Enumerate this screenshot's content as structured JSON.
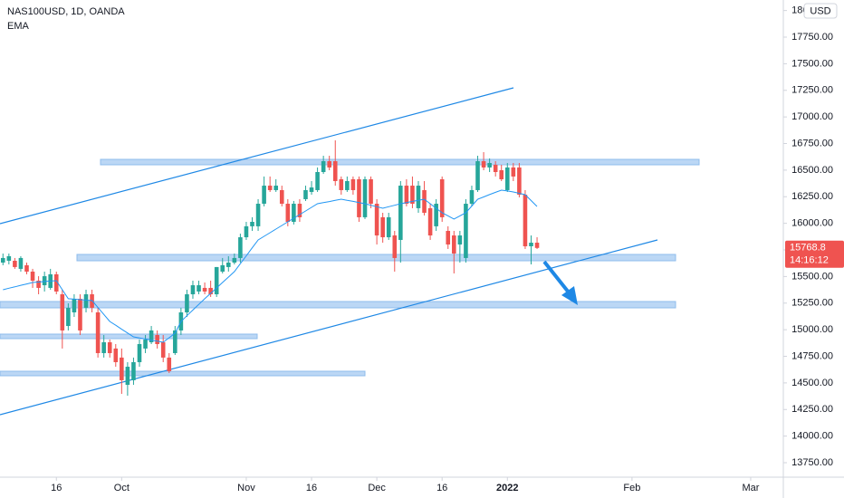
{
  "chart_data": {
    "type": "candlestick",
    "title": "NAS100USD, 1D, OANDA",
    "currency": "USD",
    "up_color": "#26a69a",
    "down_color": "#ef5350",
    "ohlc": [
      [
        15631,
        15716,
        15606,
        15674
      ],
      [
        15648,
        15716,
        15614,
        15691
      ],
      [
        15648,
        15674,
        15572,
        15589
      ],
      [
        15572,
        15691,
        15546,
        15674
      ],
      [
        15606,
        15631,
        15521,
        15546
      ],
      [
        15546,
        15572,
        15393,
        15461
      ],
      [
        15461,
        15503,
        15333,
        15393
      ],
      [
        15418,
        15546,
        15359,
        15503
      ],
      [
        15393,
        15572,
        15376,
        15521
      ],
      [
        15521,
        15546,
        15333,
        15359
      ],
      [
        15333,
        15376,
        14823,
        14993
      ],
      [
        15035,
        15248,
        14993,
        15206
      ],
      [
        15163,
        15333,
        15120,
        15291
      ],
      [
        15291,
        15333,
        14950,
        14993
      ],
      [
        15206,
        15376,
        15163,
        15333
      ],
      [
        15333,
        15376,
        15163,
        15206
      ],
      [
        15163,
        15206,
        14738,
        14780
      ],
      [
        14780,
        14950,
        14738,
        14882
      ],
      [
        14882,
        14908,
        14738,
        14780
      ],
      [
        14823,
        14865,
        14652,
        14695
      ],
      [
        14738,
        14823,
        14397,
        14525
      ],
      [
        14482,
        14695,
        14380,
        14652
      ],
      [
        14525,
        14738,
        14482,
        14695
      ],
      [
        14695,
        14908,
        14652,
        14865
      ],
      [
        14823,
        14950,
        14780,
        14908
      ],
      [
        14882,
        15035,
        14865,
        14993
      ],
      [
        14950,
        14993,
        14823,
        14865
      ],
      [
        14882,
        14950,
        14695,
        14738
      ],
      [
        14738,
        14780,
        14593,
        14610
      ],
      [
        14780,
        15035,
        14763,
        14993
      ],
      [
        14993,
        15206,
        14950,
        15163
      ],
      [
        15163,
        15376,
        15120,
        15333
      ],
      [
        15333,
        15461,
        15291,
        15418
      ],
      [
        15359,
        15461,
        15333,
        15418
      ],
      [
        15393,
        15444,
        15333,
        15359
      ],
      [
        15393,
        15461,
        15308,
        15333
      ],
      [
        15333,
        15589,
        15308,
        15589
      ],
      [
        15546,
        15674,
        15529,
        15606
      ],
      [
        15589,
        15691,
        15546,
        15631
      ],
      [
        15631,
        15716,
        15614,
        15674
      ],
      [
        15674,
        15903,
        15631,
        15869
      ],
      [
        15869,
        16014,
        15844,
        15972
      ],
      [
        15972,
        16057,
        15929,
        16014
      ],
      [
        15972,
        16227,
        15929,
        16184
      ],
      [
        16184,
        16440,
        16159,
        16354
      ],
      [
        16354,
        16440,
        16295,
        16312
      ],
      [
        16312,
        16414,
        16295,
        16354
      ],
      [
        16312,
        16354,
        16159,
        16184
      ],
      [
        16184,
        16227,
        15972,
        16014
      ],
      [
        16014,
        16210,
        15989,
        16184
      ],
      [
        16184,
        16227,
        16014,
        16057
      ],
      [
        16227,
        16354,
        16210,
        16312
      ],
      [
        16295,
        16397,
        16269,
        16337
      ],
      [
        16312,
        16525,
        16295,
        16482
      ],
      [
        16482,
        16635,
        16465,
        16584
      ],
      [
        16584,
        16635,
        16499,
        16525
      ],
      [
        16584,
        16780,
        16354,
        16397
      ],
      [
        16414,
        16440,
        16269,
        16312
      ],
      [
        16312,
        16440,
        16295,
        16397
      ],
      [
        16414,
        16440,
        16269,
        16312
      ],
      [
        16414,
        16440,
        16014,
        16057
      ],
      [
        16057,
        16440,
        16040,
        16414
      ],
      [
        16414,
        16440,
        16142,
        16184
      ],
      [
        16184,
        16227,
        15801,
        15886
      ],
      [
        16057,
        16099,
        15818,
        15869
      ],
      [
        15869,
        16099,
        15844,
        16057
      ],
      [
        15886,
        15929,
        15546,
        15674
      ],
      [
        15844,
        16397,
        15631,
        16354
      ],
      [
        16354,
        16414,
        16159,
        16184
      ],
      [
        16354,
        16440,
        16142,
        16184
      ],
      [
        16142,
        16397,
        16099,
        16354
      ],
      [
        16312,
        16397,
        16074,
        16099
      ],
      [
        16142,
        16184,
        15844,
        15886
      ],
      [
        15972,
        16227,
        15929,
        16184
      ],
      [
        16414,
        16440,
        16014,
        16057
      ],
      [
        15929,
        15972,
        15759,
        15801
      ],
      [
        15886,
        15929,
        15529,
        15716
      ],
      [
        15801,
        15929,
        15631,
        15886
      ],
      [
        15674,
        16227,
        15631,
        16184
      ],
      [
        16184,
        16354,
        16159,
        16312
      ],
      [
        16312,
        16635,
        16295,
        16584
      ],
      [
        16584,
        16669,
        16499,
        16525
      ],
      [
        16525,
        16610,
        16482,
        16567
      ],
      [
        16550,
        16584,
        16440,
        16482
      ],
      [
        16499,
        16550,
        16397,
        16414
      ],
      [
        16312,
        16567,
        16295,
        16525
      ],
      [
        16525,
        16567,
        16397,
        16440
      ],
      [
        16525,
        16567,
        16244,
        16269
      ],
      [
        16269,
        16312,
        15759,
        15784
      ],
      [
        15784,
        15886,
        15614,
        15818
      ],
      [
        15818,
        15869,
        15759,
        15768.8
      ]
    ],
    "series": [
      {
        "name": "EMA",
        "color": "#2196f3",
        "values": [
          15376,
          15390,
          15403,
          15417,
          15430,
          15444,
          15448,
          15453,
          15457,
          15461,
          15376,
          15291,
          15287,
          15283,
          15278,
          15274,
          15209,
          15143,
          15078,
          15042,
          15005,
          14969,
          14933,
          14923,
          14913,
          14902,
          14892,
          14882,
          14925,
          14967,
          15078,
          15131,
          15185,
          15238,
          15291,
          15342,
          15393,
          15444,
          15495,
          15546,
          15621,
          15695,
          15770,
          15844,
          15878,
          15912,
          15946,
          15980,
          16014,
          16048,
          16082,
          16116,
          16150,
          16184,
          16195,
          16205,
          16216,
          16227,
          16216,
          16206,
          16195,
          16184,
          16170,
          16156,
          16142,
          16156,
          16170,
          16184,
          16195,
          16206,
          16216,
          16227,
          16184,
          16142,
          16099,
          16070,
          16040,
          16070,
          16099,
          16163,
          16227,
          16248,
          16270,
          16291,
          16312,
          16304,
          16295,
          16282,
          16269,
          16214,
          16159
        ]
      }
    ],
    "last_price": 15768.8,
    "countdown": "14:16:12",
    "xlim": [
      -0.5,
      131.5
    ],
    "xticks": [
      {
        "value": 9,
        "label": "16"
      },
      {
        "value": 20,
        "label": "Oct"
      },
      {
        "value": 41,
        "label": "Nov"
      },
      {
        "value": 52,
        "label": "16"
      },
      {
        "value": 63,
        "label": "Dec"
      },
      {
        "value": 74,
        "label": "16"
      },
      {
        "value": 85,
        "label": "2022"
      },
      {
        "value": 106,
        "label": "Feb"
      },
      {
        "value": 126,
        "label": "Mar"
      }
    ],
    "ylim": [
      13614,
      18099
    ],
    "yticks": [
      {
        "value": 18000,
        "label": "18000.00"
      },
      {
        "value": 17750,
        "label": "17750.00"
      },
      {
        "value": 17500,
        "label": "17500.00"
      },
      {
        "value": 17250,
        "label": "17250.00"
      },
      {
        "value": 17000,
        "label": "17000.00"
      },
      {
        "value": 16750,
        "label": "16750.00"
      },
      {
        "value": 16500,
        "label": "16500.00"
      },
      {
        "value": 16250,
        "label": "16250.00"
      },
      {
        "value": 16000,
        "label": "16000.00"
      },
      {
        "value": 15750,
        "label": "15750.00"
      },
      {
        "value": 15500,
        "label": "15500.00"
      },
      {
        "value": 15250,
        "label": "15250.00"
      },
      {
        "value": 15000,
        "label": "15000.00"
      },
      {
        "value": 14750,
        "label": "14750.00"
      },
      {
        "value": 14500,
        "label": "14500.00"
      },
      {
        "value": 14250,
        "label": "14250.00"
      },
      {
        "value": 14000,
        "label": "14000.00"
      },
      {
        "value": 13750,
        "label": "13750.00"
      }
    ],
    "grid": false
  }
}
